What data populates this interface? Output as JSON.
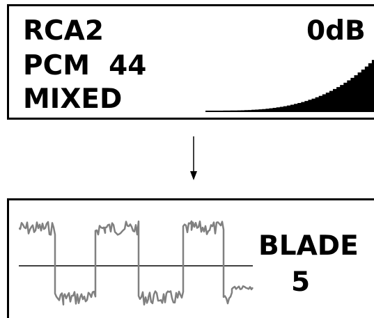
{
  "status_display": {
    "input": "RCA2",
    "format": "PCM  44",
    "mode": "MIXED",
    "volume": "0dB"
  },
  "effect_display": {
    "effect_name": "BLADE",
    "effect_value": "5"
  },
  "colors": {
    "lcd_ink": "#000000",
    "lcd_background": "#ffffff",
    "waveform": "#808080"
  },
  "icons": {
    "transition_arrow": "down-arrow-icon",
    "volume_meter": "volume-ramp-icon",
    "waveform": "waveform-icon"
  }
}
